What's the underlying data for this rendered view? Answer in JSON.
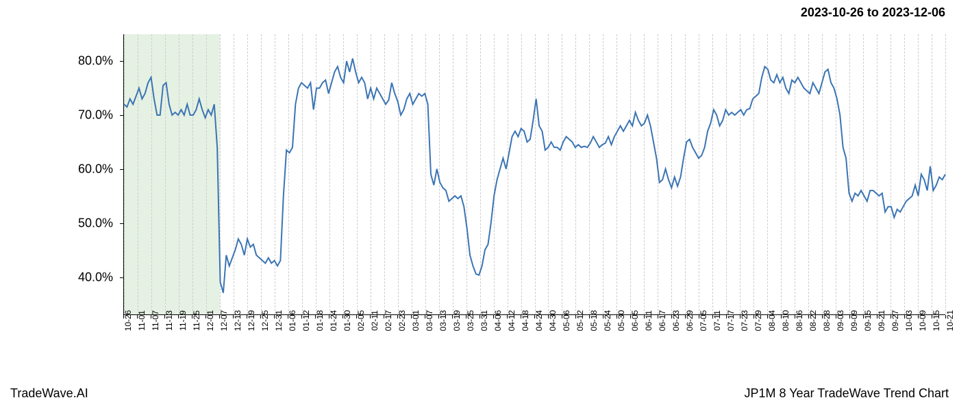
{
  "header": {
    "date_range": "2023-10-26 to 2023-12-06"
  },
  "footer": {
    "left": "TradeWave.AI",
    "right": "JP1M 8 Year TradeWave Trend Chart"
  },
  "chart": {
    "type": "line",
    "background_color": "#ffffff",
    "line_color": "#3a74b4",
    "line_width": 2,
    "grid_color": "#cccccc",
    "highlight_color": "#d4e8d0",
    "highlight_opacity": 0.6,
    "axis_color": "#000000",
    "y_axis": {
      "ticks": [
        40,
        50,
        60,
        70,
        80
      ],
      "labels": [
        "40.0%",
        "50.0%",
        "60.0%",
        "70.0%",
        "80.0%"
      ],
      "min": 33,
      "max": 85,
      "label_fontsize": 18
    },
    "x_axis": {
      "labels": [
        "10-26",
        "11-01",
        "11-07",
        "11-13",
        "11-19",
        "11-25",
        "12-01",
        "12-07",
        "12-13",
        "12-19",
        "12-25",
        "12-31",
        "01-06",
        "01-12",
        "01-18",
        "01-24",
        "01-30",
        "02-05",
        "02-11",
        "02-17",
        "02-23",
        "03-01",
        "03-07",
        "03-13",
        "03-19",
        "03-25",
        "03-31",
        "04-06",
        "04-12",
        "04-18",
        "04-24",
        "04-30",
        "05-06",
        "05-12",
        "05-18",
        "05-24",
        "05-30",
        "06-05",
        "06-11",
        "06-17",
        "06-23",
        "06-29",
        "07-05",
        "07-11",
        "07-17",
        "07-23",
        "07-29",
        "08-04",
        "08-10",
        "08-16",
        "08-22",
        "08-28",
        "09-03",
        "09-09",
        "09-15",
        "09-21",
        "09-27",
        "10-03",
        "10-09",
        "10-15",
        "10-21"
      ],
      "label_fontsize": 12,
      "rotation": -90
    },
    "highlight_region": {
      "start_index": 0,
      "end_index": 7
    },
    "data": [
      72,
      71.5,
      73,
      72,
      73.5,
      75,
      73,
      74,
      76,
      77,
      73,
      70,
      70,
      75.5,
      76,
      72,
      70,
      70.5,
      70,
      71,
      70,
      72,
      70,
      70,
      71,
      73,
      71,
      69.5,
      71,
      70,
      72,
      64,
      39,
      37,
      44,
      42,
      43.5,
      45,
      47,
      46,
      44,
      47,
      45.5,
      46,
      44,
      43.5,
      43,
      42.5,
      43.5,
      42.5,
      43,
      42,
      43,
      55,
      63.5,
      63,
      64,
      72,
      75,
      76,
      75.5,
      75,
      76,
      71,
      75,
      75,
      76,
      76.5,
      74,
      76,
      78,
      79,
      77,
      76,
      80,
      78,
      80.5,
      78,
      76,
      77,
      76,
      73,
      75,
      73,
      75,
      74,
      73,
      72,
      72.8,
      76,
      74,
      72.5,
      70,
      71,
      73,
      74,
      72,
      73,
      74,
      73.5,
      74,
      72,
      59,
      57,
      60,
      57.5,
      56.5,
      56,
      54,
      54.5,
      55,
      54.5,
      55,
      53,
      49,
      44,
      42,
      40.5,
      40.3,
      42,
      45,
      46,
      50,
      55,
      58,
      60,
      62,
      60,
      63,
      66,
      67,
      66,
      67.5,
      67,
      65,
      65.5,
      69,
      73,
      68,
      67,
      63.5,
      64,
      65,
      64,
      64,
      63.5,
      65,
      66,
      65.5,
      65,
      64,
      64.5,
      64,
      64.2,
      64,
      64.8,
      66,
      65,
      64,
      64.5,
      64.8,
      66,
      64.5,
      66,
      67,
      68,
      67,
      68,
      69,
      68,
      70.5,
      69,
      68,
      68.5,
      70,
      68,
      65,
      62,
      57.5,
      58,
      60,
      58,
      56.5,
      58.5,
      56.8,
      58.5,
      62,
      65,
      65.5,
      64,
      63,
      62,
      62.5,
      64,
      67,
      68.5,
      71,
      70,
      68,
      69,
      71,
      70,
      70.5,
      70,
      70.5,
      71,
      70,
      71,
      71.2,
      73,
      73.5,
      74,
      77,
      79,
      78.5,
      76.5,
      76,
      77.5,
      76,
      77,
      75,
      74,
      76.5,
      76,
      77,
      76,
      75,
      74.5,
      74,
      76,
      75,
      74,
      76,
      78,
      78.5,
      76,
      75,
      73,
      70,
      64,
      62,
      55.5,
      54,
      55.5,
      55,
      56,
      55,
      54,
      56,
      56,
      55.5,
      55,
      55.5,
      52,
      53,
      53,
      51,
      52.5,
      52,
      53,
      54,
      54.5,
      55,
      57,
      55,
      59,
      58,
      56,
      60.5,
      56,
      57,
      58.5,
      58,
      59
    ]
  }
}
